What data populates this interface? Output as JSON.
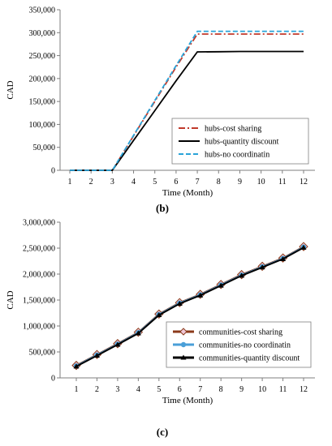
{
  "chart_data": [
    {
      "type": "line",
      "xlabel": "Time (Month)",
      "ylabel": "CAD",
      "panel_label": "(b)",
      "x": [
        1,
        2,
        3,
        4,
        5,
        6,
        7,
        8,
        9,
        10,
        11,
        12
      ],
      "xlim": [
        1,
        12
      ],
      "ylim": [
        0,
        350000
      ],
      "yticks": [
        0,
        50000,
        100000,
        150000,
        200000,
        250000,
        300000,
        350000
      ],
      "ytick_labels": [
        "0",
        "50,000",
        "100,000",
        "150,000",
        "200,000",
        "250,000",
        "300,000",
        "350,000"
      ],
      "grid": false,
      "legend_position": "bottom-right",
      "series": [
        {
          "name": "hubs-cost sharing",
          "color": "#c0392b",
          "dash": "dashdot",
          "values": [
            0,
            0,
            0,
            75000,
            150000,
            225000,
            297000,
            297000,
            297000,
            297000,
            297000,
            297000
          ]
        },
        {
          "name": "hubs-quantity discount",
          "color": "#000000",
          "dash": "solid",
          "values": [
            0,
            0,
            0,
            65000,
            130000,
            195000,
            258000,
            258500,
            259000,
            259000,
            259000,
            259000
          ]
        },
        {
          "name": "hubs-no coordinatin",
          "color": "#29a3d8",
          "dash": "dashed",
          "values": [
            0,
            0,
            0,
            76000,
            152000,
            228000,
            303000,
            303000,
            303000,
            303000,
            303000,
            303000
          ]
        }
      ]
    },
    {
      "type": "line",
      "xlabel": "Time (Month)",
      "ylabel": "CAD",
      "panel_label": "(c)",
      "x": [
        1,
        2,
        3,
        4,
        5,
        6,
        7,
        8,
        9,
        10,
        11,
        12
      ],
      "xlim": [
        1,
        12
      ],
      "ylim": [
        0,
        3000000
      ],
      "yticks": [
        0,
        500000,
        1000000,
        1500000,
        2000000,
        2500000,
        3000000
      ],
      "ytick_labels": [
        "0",
        "500,000",
        "1,000,000",
        "1,500,000",
        "2,000,000",
        "2,500,000",
        "3,000,000"
      ],
      "grid": false,
      "legend_position": "bottom-right",
      "series": [
        {
          "name": "communities-cost sharing",
          "color": "#8b3a1a",
          "marker": "diamond",
          "values": [
            240000,
            450000,
            660000,
            880000,
            1230000,
            1450000,
            1610000,
            1800000,
            1990000,
            2150000,
            2310000,
            2530000
          ]
        },
        {
          "name": "communities-no coordinatin",
          "color": "#4a9fd8",
          "marker": "circle",
          "values": [
            230000,
            440000,
            650000,
            870000,
            1220000,
            1440000,
            1600000,
            1790000,
            1980000,
            2140000,
            2300000,
            2520000
          ]
        },
        {
          "name": "communities-quantity discount",
          "color": "#000000",
          "marker": "triangle",
          "values": [
            220000,
            430000,
            640000,
            860000,
            1210000,
            1430000,
            1590000,
            1780000,
            1970000,
            2130000,
            2290000,
            2510000
          ]
        }
      ]
    }
  ]
}
